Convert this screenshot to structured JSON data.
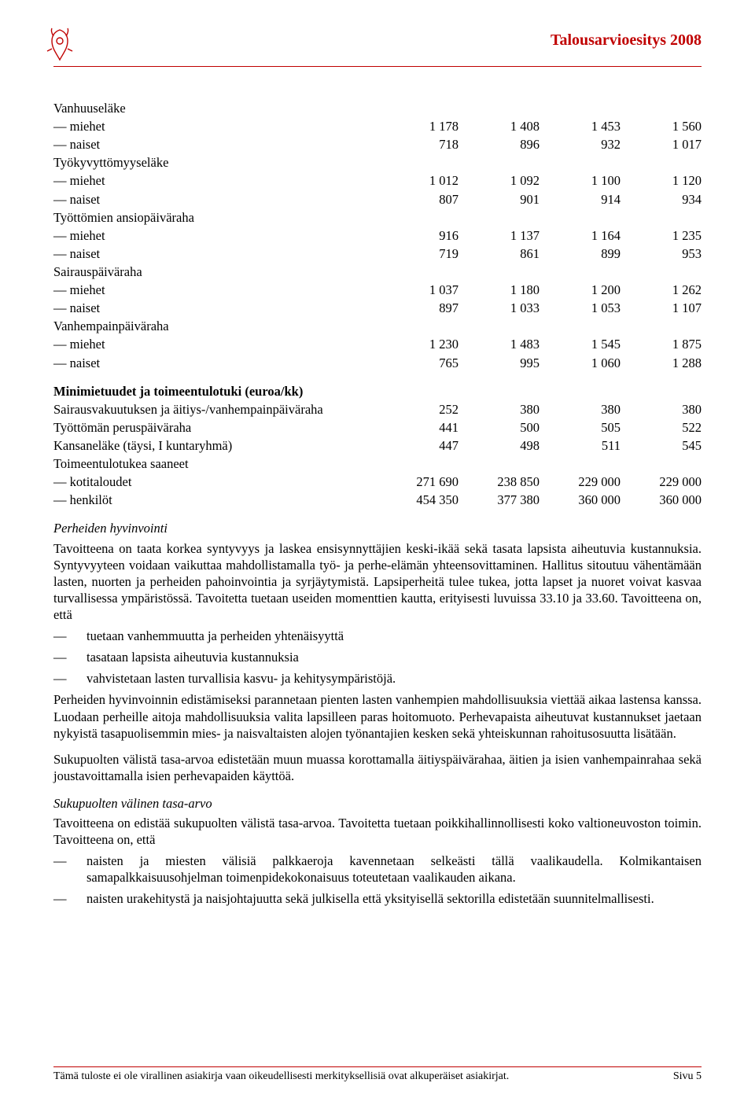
{
  "header": {
    "title": "Talousarvioesitys 2008"
  },
  "table": {
    "sections": [
      {
        "header": null,
        "rows": [
          {
            "label": "Vanhuuseläke",
            "values": [
              "",
              "",
              "",
              ""
            ]
          },
          {
            "label": "— miehet",
            "values": [
              "1 178",
              "1 408",
              "1 453",
              "1 560"
            ]
          },
          {
            "label": "— naiset",
            "values": [
              "718",
              "896",
              "932",
              "1 017"
            ]
          },
          {
            "label": "Työkyvyttömyyseläke",
            "values": [
              "",
              "",
              "",
              ""
            ]
          },
          {
            "label": "— miehet",
            "values": [
              "1 012",
              "1 092",
              "1 100",
              "1 120"
            ]
          },
          {
            "label": "— naiset",
            "values": [
              "807",
              "901",
              "914",
              "934"
            ]
          },
          {
            "label": "Työttömien ansiopäiväraha",
            "values": [
              "",
              "",
              "",
              ""
            ]
          },
          {
            "label": "— miehet",
            "values": [
              "916",
              "1 137",
              "1 164",
              "1 235"
            ]
          },
          {
            "label": "— naiset",
            "values": [
              "719",
              "861",
              "899",
              "953"
            ]
          },
          {
            "label": "Sairauspäiväraha",
            "values": [
              "",
              "",
              "",
              ""
            ]
          },
          {
            "label": "— miehet",
            "values": [
              "1 037",
              "1 180",
              "1 200",
              "1 262"
            ]
          },
          {
            "label": "— naiset",
            "values": [
              "897",
              "1 033",
              "1 053",
              "1 107"
            ]
          },
          {
            "label": "Vanhempainpäiväraha",
            "values": [
              "",
              "",
              "",
              ""
            ]
          },
          {
            "label": "— miehet",
            "values": [
              "1 230",
              "1 483",
              "1 545",
              "1 875"
            ]
          },
          {
            "label": "— naiset",
            "values": [
              "765",
              "995",
              "1 060",
              "1 288"
            ]
          }
        ]
      },
      {
        "header": "Minimietuudet ja toimeentulotuki (euroa/kk)",
        "rows": [
          {
            "label": "Sairausvakuutuksen ja äitiys-/vanhempainpäiväraha",
            "values": [
              "252",
              "380",
              "380",
              "380"
            ]
          },
          {
            "label": "Työttömän peruspäiväraha",
            "values": [
              "441",
              "500",
              "505",
              "522"
            ]
          },
          {
            "label": "Kansaneläke (täysi, I kuntaryhmä)",
            "values": [
              "447",
              "498",
              "511",
              "545"
            ]
          },
          {
            "label": "Toimeentulotukea saaneet",
            "values": [
              "",
              "",
              "",
              ""
            ]
          },
          {
            "label": "— kotitaloudet",
            "values": [
              "271 690",
              "238 850",
              "229 000",
              "229 000"
            ]
          },
          {
            "label": "— henkilöt",
            "values": [
              "454 350",
              "377 380",
              "360 000",
              "360 000"
            ]
          }
        ]
      }
    ]
  },
  "body": {
    "perheiden_heading": "Perheiden hyvinvointi",
    "perheiden_p1": "Tavoitteena on taata korkea syntyvyys ja laskea ensisynnyttäjien keski-ikää sekä tasata lapsista aiheutuvia kustannuksia. Syntyvyyteen voidaan vaikuttaa mahdollistamalla työ- ja perhe-elämän yhteensovittaminen. Hallitus sitoutuu vähentämään lasten, nuorten ja perheiden pahoinvointia ja syrjäytymistä. Lapsiperheitä tulee tukea, jotta lapset ja nuoret voivat kasvaa turvallisessa ympäristössä. Tavoitetta tuetaan useiden momenttien kautta, erityisesti luvuissa 33.10 ja 33.60. Tavoitteena on, että",
    "perheiden_bullets": [
      "tuetaan vanhemmuutta ja perheiden yhtenäisyyttä",
      "tasataan lapsista aiheutuvia kustannuksia",
      "vahvistetaan lasten turvallisia kasvu- ja kehitysympäristöjä."
    ],
    "perheiden_p2": "Perheiden hyvinvoinnin edistämiseksi parannetaan pienten lasten vanhempien mahdollisuuksia viettää aikaa lastensa kanssa. Luodaan perheille aitoja mahdollisuuksia valita lapsilleen paras hoitomuoto. Perhevapaista aiheutuvat kustannukset jaetaan nykyistä tasapuolisemmin mies- ja naisvaltaisten alojen työnantajien kesken sekä yhteiskunnan rahoitusosuutta lisätään.",
    "perheiden_p3": "Sukupuolten välistä tasa-arvoa edistetään muun muassa korottamalla äitiyspäivärahaa, äitien ja isien vanhempainrahaa sekä joustavoittamalla isien perhevapaiden käyttöä.",
    "tasaarvo_heading": "Sukupuolten välinen tasa-arvo",
    "tasaarvo_p1": "Tavoitteena on edistää sukupuolten välistä tasa-arvoa. Tavoitetta tuetaan poikkihallinnollisesti koko valtioneuvoston toimin. Tavoitteena on, että",
    "tasaarvo_bullets": [
      "naisten ja miesten välisiä palkkaeroja kavennetaan selkeästi tällä vaalikaudella. Kolmikantaisen samapalkkaisuusohjelman toimenpidekokonaisuus toteutetaan vaalikauden aikana.",
      "naisten urakehitystä ja naisjohtajuutta sekä julkisella että yksityisellä sektorilla edistetään suunnitelmallisesti."
    ]
  },
  "footer": {
    "left": "Tämä tuloste ei ole virallinen asiakirja vaan oikeudellisesti merkityksellisiä ovat alkuperäiset asiakirjat.",
    "right": "Sivu 5"
  }
}
